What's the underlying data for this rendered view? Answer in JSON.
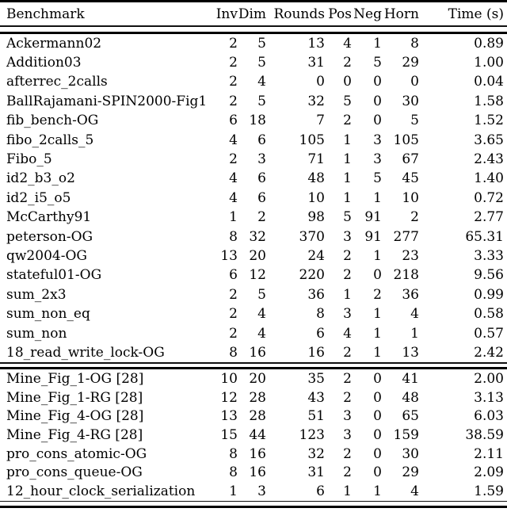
{
  "colors": {
    "text": "#000000",
    "background": "#ffffff",
    "rule": "#000000"
  },
  "table": {
    "columns": {
      "benchmark": "Benchmark",
      "inv": "Inv",
      "dim": "Dim",
      "rounds": "Rounds",
      "pos": "Pos",
      "neg": "Neg",
      "horn": "Horn",
      "time": "Time (s)"
    },
    "sections": [
      {
        "rows": [
          {
            "name": "Ackermann02",
            "inv": "2",
            "dim": "5",
            "rounds": "13",
            "pos": "4",
            "neg": "1",
            "horn": "8",
            "time": "0.89"
          },
          {
            "name": "Addition03",
            "inv": "2",
            "dim": "5",
            "rounds": "31",
            "pos": "2",
            "neg": "5",
            "horn": "29",
            "time": "1.00"
          },
          {
            "name": "afterrec_2calls",
            "inv": "2",
            "dim": "4",
            "rounds": "0",
            "pos": "0",
            "neg": "0",
            "horn": "0",
            "time": "0.04"
          },
          {
            "name": "BallRajamani-SPIN2000-Fig1",
            "inv": "2",
            "dim": "5",
            "rounds": "32",
            "pos": "5",
            "neg": "0",
            "horn": "30",
            "time": "1.58"
          },
          {
            "name": "fib_bench-OG",
            "inv": "6",
            "dim": "18",
            "rounds": "7",
            "pos": "2",
            "neg": "0",
            "horn": "5",
            "time": "1.52"
          },
          {
            "name": "fibo_2calls_5",
            "inv": "4",
            "dim": "6",
            "rounds": "105",
            "pos": "1",
            "neg": "3",
            "horn": "105",
            "time": "3.65"
          },
          {
            "name": "Fibo_5",
            "inv": "2",
            "dim": "3",
            "rounds": "71",
            "pos": "1",
            "neg": "3",
            "horn": "67",
            "time": "2.43"
          },
          {
            "name": "id2_b3_o2",
            "inv": "4",
            "dim": "6",
            "rounds": "48",
            "pos": "1",
            "neg": "5",
            "horn": "45",
            "time": "1.40"
          },
          {
            "name": "id2_i5_o5",
            "inv": "4",
            "dim": "6",
            "rounds": "10",
            "pos": "1",
            "neg": "1",
            "horn": "10",
            "time": "0.72"
          },
          {
            "name": "McCarthy91",
            "inv": "1",
            "dim": "2",
            "rounds": "98",
            "pos": "5",
            "neg": "91",
            "horn": "2",
            "time": "2.77"
          },
          {
            "name": "peterson-OG",
            "inv": "8",
            "dim": "32",
            "rounds": "370",
            "pos": "3",
            "neg": "91",
            "horn": "277",
            "time": "65.31"
          },
          {
            "name": "qw2004-OG",
            "inv": "13",
            "dim": "20",
            "rounds": "24",
            "pos": "2",
            "neg": "1",
            "horn": "23",
            "time": "3.33"
          },
          {
            "name": "stateful01-OG",
            "inv": "6",
            "dim": "12",
            "rounds": "220",
            "pos": "2",
            "neg": "0",
            "horn": "218",
            "time": "9.56"
          },
          {
            "name": "sum_2x3",
            "inv": "2",
            "dim": "5",
            "rounds": "36",
            "pos": "1",
            "neg": "2",
            "horn": "36",
            "time": "0.99"
          },
          {
            "name": "sum_non_eq",
            "inv": "2",
            "dim": "4",
            "rounds": "8",
            "pos": "3",
            "neg": "1",
            "horn": "4",
            "time": "0.58"
          },
          {
            "name": "sum_non",
            "inv": "2",
            "dim": "4",
            "rounds": "6",
            "pos": "4",
            "neg": "1",
            "horn": "1",
            "time": "0.57"
          },
          {
            "name": "18_read_write_lock-OG",
            "inv": "8",
            "dim": "16",
            "rounds": "16",
            "pos": "2",
            "neg": "1",
            "horn": "13",
            "time": "2.42"
          }
        ]
      },
      {
        "rows": [
          {
            "name": "Mine_Fig_1-OG [28]",
            "inv": "10",
            "dim": "20",
            "rounds": "35",
            "pos": "2",
            "neg": "0",
            "horn": "41",
            "time": "2.00"
          },
          {
            "name": "Mine_Fig_1-RG [28]",
            "inv": "12",
            "dim": "28",
            "rounds": "43",
            "pos": "2",
            "neg": "0",
            "horn": "48",
            "time": "3.13"
          },
          {
            "name": "Mine_Fig_4-OG [28]",
            "inv": "13",
            "dim": "28",
            "rounds": "51",
            "pos": "3",
            "neg": "0",
            "horn": "65",
            "time": "6.03"
          },
          {
            "name": "Mine_Fig_4-RG [28]",
            "inv": "15",
            "dim": "44",
            "rounds": "123",
            "pos": "3",
            "neg": "0",
            "horn": "159",
            "time": "38.59"
          },
          {
            "name": "pro_cons_atomic-OG",
            "inv": "8",
            "dim": "16",
            "rounds": "32",
            "pos": "2",
            "neg": "0",
            "horn": "30",
            "time": "2.11"
          },
          {
            "name": "pro_cons_queue-OG",
            "inv": "8",
            "dim": "16",
            "rounds": "31",
            "pos": "2",
            "neg": "0",
            "horn": "29",
            "time": "2.09"
          },
          {
            "name": "12_hour_clock_serialization",
            "inv": "1",
            "dim": "3",
            "rounds": "6",
            "pos": "1",
            "neg": "1",
            "horn": "4",
            "time": "1.59"
          }
        ]
      }
    ]
  }
}
